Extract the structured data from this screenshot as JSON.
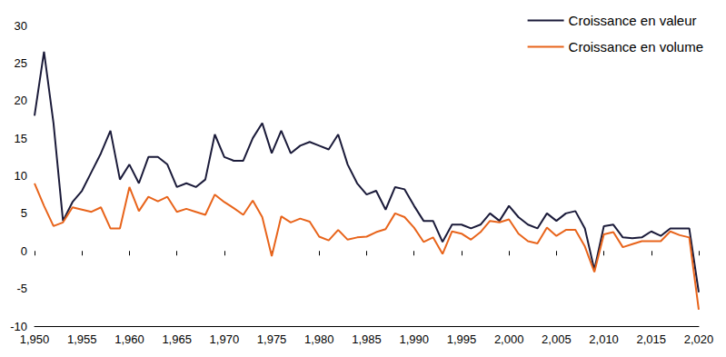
{
  "chart_data": {
    "type": "line",
    "x": [
      1950,
      1951,
      1952,
      1953,
      1954,
      1955,
      1956,
      1957,
      1958,
      1959,
      1960,
      1961,
      1962,
      1963,
      1964,
      1965,
      1966,
      1967,
      1968,
      1969,
      1970,
      1971,
      1972,
      1973,
      1974,
      1975,
      1976,
      1977,
      1978,
      1979,
      1980,
      1981,
      1982,
      1983,
      1984,
      1985,
      1986,
      1987,
      1988,
      1989,
      1990,
      1991,
      1992,
      1993,
      1994,
      1995,
      1996,
      1997,
      1998,
      1999,
      2000,
      2001,
      2002,
      2003,
      2004,
      2005,
      2006,
      2007,
      2008,
      2009,
      2010,
      2011,
      2012,
      2013,
      2014,
      2015,
      2016,
      2017,
      2018,
      2019,
      2020
    ],
    "series": [
      {
        "name": "Croissance en valeur",
        "color": "#1b1b3a",
        "values": [
          18,
          26.5,
          17,
          4,
          6.5,
          8,
          10.5,
          13,
          16,
          9.5,
          11.5,
          9,
          12.5,
          12.5,
          11.5,
          8.5,
          9,
          8.5,
          9.5,
          15.5,
          12.5,
          12,
          12,
          15,
          17,
          13,
          16,
          13,
          14,
          14.5,
          14,
          13.5,
          15.5,
          11.5,
          9,
          7.5,
          8,
          5.5,
          8.5,
          8.2,
          6,
          4,
          4,
          1.2,
          3.5,
          3.5,
          3,
          3.5,
          5,
          4,
          6,
          4.5,
          3.5,
          3,
          5,
          4,
          5,
          5.3,
          3,
          -2.5,
          3.3,
          3.5,
          1.8,
          1.7,
          1.8,
          2.6,
          2,
          3,
          3,
          3,
          -5.5
        ]
      },
      {
        "name": "Croissance en volume",
        "color": "#e8641b",
        "values": [
          9,
          6,
          3.3,
          3.8,
          5.8,
          5.5,
          5.2,
          5.8,
          3,
          3,
          8.5,
          5.3,
          7.2,
          6.6,
          7.2,
          5.2,
          5.6,
          5.2,
          4.8,
          7.5,
          6.5,
          5.7,
          4.8,
          6.7,
          4.5,
          -0.7,
          4.6,
          3.8,
          4.3,
          3.9,
          1.9,
          1.4,
          2.8,
          1.5,
          1.8,
          1.9,
          2.5,
          2.9,
          5,
          4.5,
          3.1,
          1.2,
          1.8,
          -0.4,
          2.6,
          2.3,
          1.5,
          2.5,
          4,
          3.8,
          4.2,
          2.3,
          1.3,
          1,
          3.1,
          2,
          2.8,
          2.8,
          0.6,
          -2.8,
          2.2,
          2.5,
          0.5,
          0.9,
          1.3,
          1.3,
          1.3,
          2.6,
          2.1,
          1.8,
          -7.8
        ]
      }
    ],
    "xlim": [
      1950,
      2020
    ],
    "xticks": [
      1950,
      1955,
      1960,
      1965,
      1970,
      1975,
      1980,
      1985,
      1990,
      1995,
      2000,
      2005,
      2010,
      2015,
      2020
    ],
    "ylim": [
      -10,
      30
    ],
    "yticks": [
      -10,
      -5,
      0,
      5,
      10,
      15,
      20,
      25,
      30
    ],
    "grid": false,
    "legend": "top-right",
    "marker": "none",
    "line_style": "solid"
  }
}
